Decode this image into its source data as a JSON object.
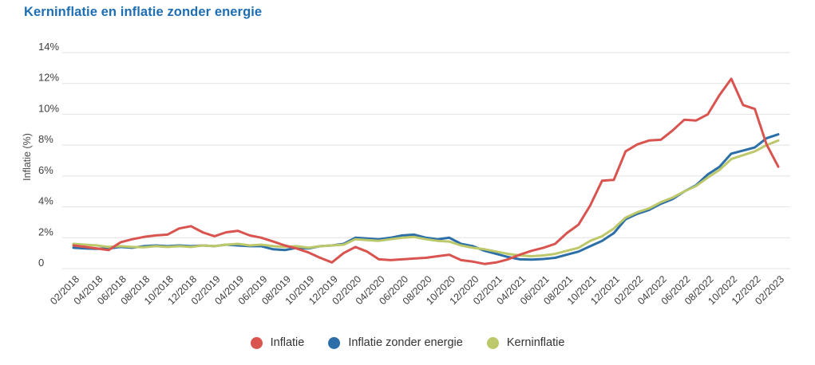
{
  "title": "Kerninflatie en inflatie zonder energie",
  "colors": {
    "title": "#1d6eb5",
    "grid": "#e2e2e2",
    "axis_text": "#3d3d3d",
    "inflatie": "#d9534f",
    "inflatie_zonder_energie": "#2c6fa8",
    "kerninflatie": "#bdc86b"
  },
  "chart_data": {
    "type": "line",
    "title": "Kerninflatie en inflatie zonder energie",
    "xlabel": "",
    "ylabel": "Inflatie (%)",
    "ylim": [
      0,
      14
    ],
    "ytick_step": 2,
    "ytick_labels": [
      "0",
      "2%",
      "4%",
      "6%",
      "8%",
      "10%",
      "12%",
      "14%"
    ],
    "grid": true,
    "legend_position": "bottom",
    "xtick_every": 2,
    "x": [
      "02/2018",
      "03/2018",
      "04/2018",
      "05/2018",
      "06/2018",
      "07/2018",
      "08/2018",
      "09/2018",
      "10/2018",
      "11/2018",
      "12/2018",
      "01/2019",
      "02/2019",
      "03/2019",
      "04/2019",
      "05/2019",
      "06/2019",
      "07/2019",
      "08/2019",
      "09/2019",
      "10/2019",
      "11/2019",
      "12/2019",
      "01/2020",
      "02/2020",
      "03/2020",
      "04/2020",
      "05/2020",
      "06/2020",
      "07/2020",
      "08/2020",
      "09/2020",
      "10/2020",
      "11/2020",
      "12/2020",
      "01/2021",
      "02/2021",
      "03/2021",
      "04/2021",
      "05/2021",
      "06/2021",
      "07/2021",
      "08/2021",
      "09/2021",
      "10/2021",
      "11/2021",
      "12/2021",
      "01/2022",
      "02/2022",
      "03/2022",
      "04/2022",
      "05/2022",
      "06/2022",
      "07/2022",
      "08/2022",
      "09/2022",
      "10/2022",
      "11/2022",
      "12/2022",
      "01/2023",
      "02/2023"
    ],
    "series": [
      {
        "name": "Inflatie",
        "color": "#d9534f",
        "values": [
          1.5,
          1.4,
          1.3,
          1.2,
          1.7,
          1.9,
          2.05,
          2.15,
          2.2,
          2.6,
          2.75,
          2.35,
          2.1,
          2.35,
          2.45,
          2.15,
          2.0,
          1.75,
          1.5,
          1.3,
          1.05,
          0.7,
          0.4,
          1.0,
          1.4,
          1.1,
          0.6,
          0.55,
          0.6,
          0.65,
          0.7,
          0.8,
          0.9,
          0.55,
          0.45,
          0.3,
          0.4,
          0.6,
          0.9,
          1.15,
          1.35,
          1.6,
          2.3,
          2.85,
          4.1,
          5.7,
          5.75,
          7.6,
          8.05,
          8.3,
          8.35,
          8.95,
          9.65,
          9.6,
          10.0,
          11.25,
          12.3,
          10.6,
          10.35,
          8.05,
          6.6
        ]
      },
      {
        "name": "Inflatie zonder energie",
        "color": "#2c6fa8",
        "values": [
          1.35,
          1.3,
          1.28,
          1.3,
          1.4,
          1.35,
          1.45,
          1.5,
          1.45,
          1.5,
          1.45,
          1.5,
          1.45,
          1.55,
          1.5,
          1.45,
          1.45,
          1.25,
          1.2,
          1.35,
          1.3,
          1.45,
          1.5,
          1.6,
          2.0,
          1.95,
          1.9,
          2.0,
          2.15,
          2.2,
          2.0,
          1.9,
          2.0,
          1.6,
          1.45,
          1.15,
          0.95,
          0.75,
          0.6,
          0.58,
          0.62,
          0.7,
          0.9,
          1.1,
          1.45,
          1.8,
          2.3,
          3.2,
          3.55,
          3.8,
          4.2,
          4.5,
          5.0,
          5.4,
          6.1,
          6.6,
          7.45,
          7.65,
          7.85,
          8.45,
          8.7
        ]
      },
      {
        "name": "Kerninflatie",
        "color": "#bdc86b",
        "values": [
          1.6,
          1.55,
          1.5,
          1.4,
          1.45,
          1.4,
          1.38,
          1.45,
          1.4,
          1.45,
          1.4,
          1.5,
          1.45,
          1.55,
          1.6,
          1.5,
          1.55,
          1.45,
          1.4,
          1.45,
          1.35,
          1.45,
          1.5,
          1.55,
          1.9,
          1.85,
          1.8,
          1.9,
          2.0,
          2.05,
          1.9,
          1.8,
          1.75,
          1.5,
          1.35,
          1.25,
          1.1,
          0.95,
          0.85,
          0.8,
          0.85,
          0.95,
          1.15,
          1.35,
          1.8,
          2.1,
          2.6,
          3.3,
          3.65,
          3.9,
          4.3,
          4.6,
          5.0,
          5.35,
          5.9,
          6.4,
          7.1,
          7.35,
          7.6,
          8.0,
          8.3
        ]
      }
    ]
  }
}
